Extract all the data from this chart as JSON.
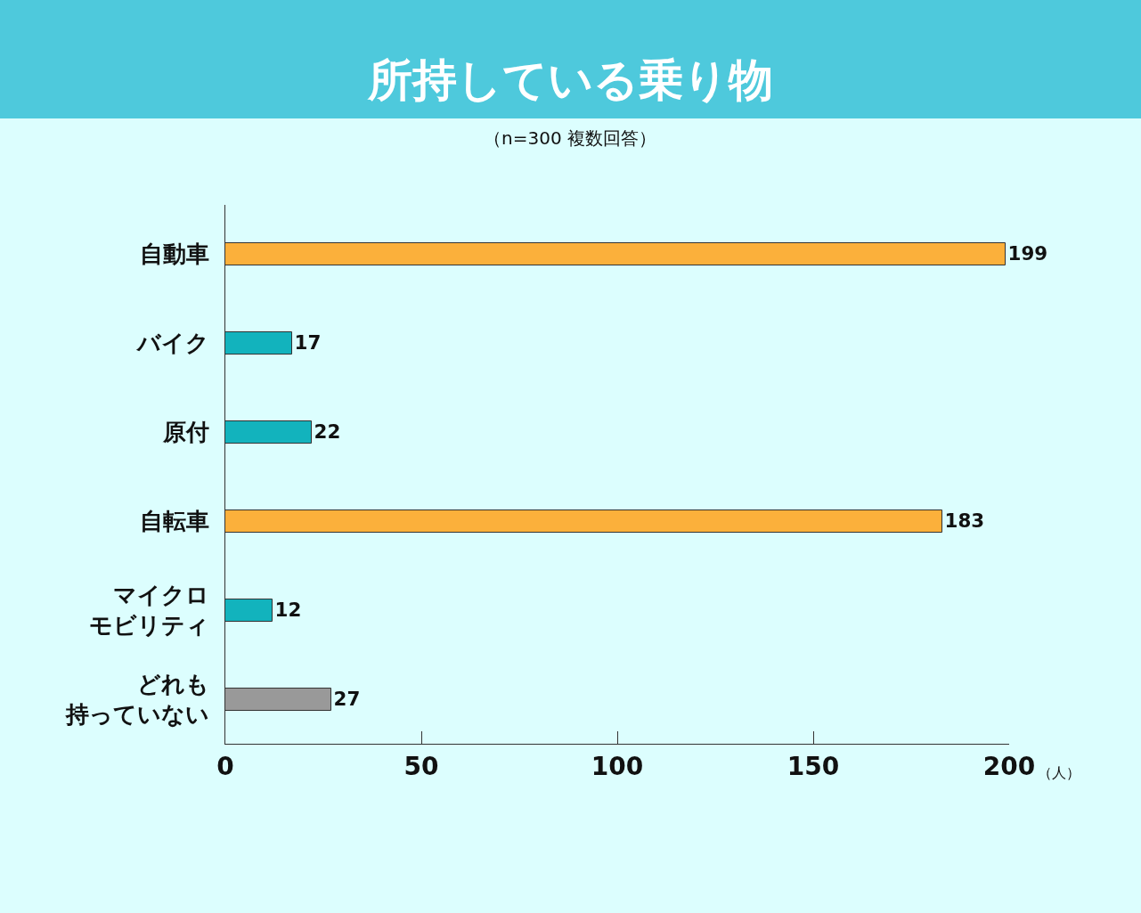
{
  "chart_data": {
    "type": "bar",
    "orientation": "horizontal",
    "title": "所持している乗り物",
    "subtitle": "（n=300 複数回答）",
    "xlabel": "（人）",
    "categories": [
      "自動車",
      "バイク",
      "原付",
      "自転車",
      "マイクロモビリティ",
      "どれも持っていない"
    ],
    "values": [
      199,
      17,
      22,
      183,
      12,
      27
    ],
    "colors": [
      "#fbb03b",
      "#12b3bd",
      "#12b3bd",
      "#fbb03b",
      "#12b3bd",
      "#999999"
    ],
    "xlim": [
      0,
      200
    ],
    "xticks": [
      0,
      50,
      100,
      150,
      200
    ],
    "data_labels": true,
    "grid": false,
    "legend": false
  }
}
